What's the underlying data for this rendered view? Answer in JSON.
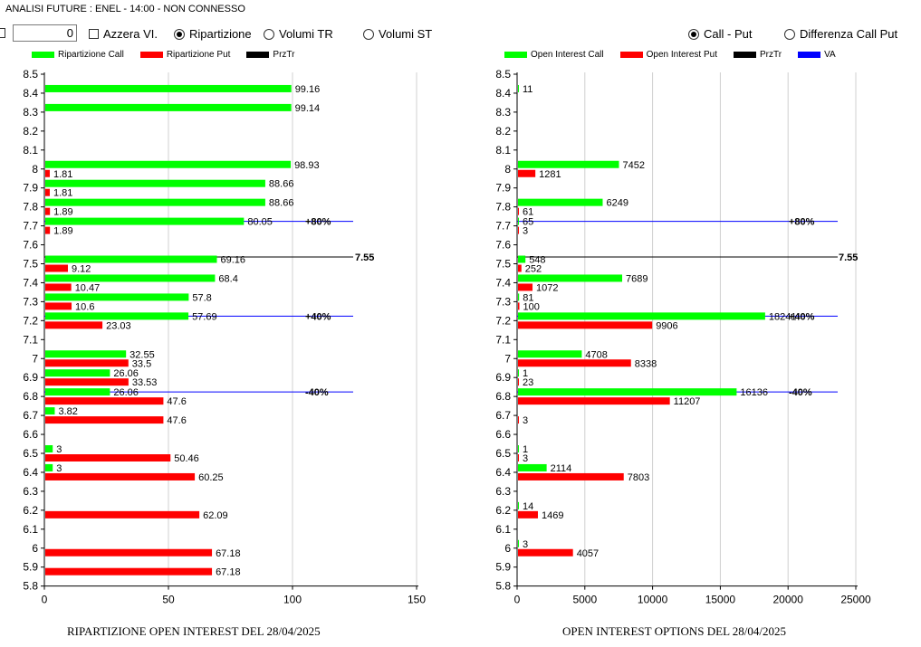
{
  "window": {
    "title": "ANALISI FUTURE : ENEL - 14:00 - NON CONNESSO"
  },
  "controls": {
    "number_value": "0",
    "azzera_label": "Azzera VI.",
    "ripartizione_label": "Ripartizione",
    "volumi_tr_label": "Volumi TR",
    "volumi_st_label": "Volumi ST",
    "call_put_label": "Call - Put",
    "differenza_label": "Differenza Call Put"
  },
  "legend_left": {
    "call": "Ripartizione Call",
    "put": "Ripartizione Put",
    "prztr": "PrzTr"
  },
  "legend_right": {
    "call": "Open Interest Call",
    "put": "Open Interest Put",
    "prztr": "PrzTr",
    "va": "VA"
  },
  "colors": {
    "call": "#00ff00",
    "put": "#ff0000",
    "prztr": "#000000",
    "va": "#0000ff",
    "grid": "#d0d0d0"
  },
  "chart_data": [
    {
      "type": "bar",
      "orientation": "horizontal",
      "title": "RIPARTIZIONE OPEN INTEREST DEL 28/04/2025",
      "categories": [
        "8.5",
        "8.4",
        "8.3",
        "8.2",
        "8.1",
        "8",
        "7.9",
        "7.8",
        "7.7",
        "7.6",
        "7.5",
        "7.4",
        "7.3",
        "7.2",
        "7.1",
        "7",
        "6.9",
        "6.8",
        "6.7",
        "6.6",
        "6.5",
        "6.4",
        "6.3",
        "6.2",
        "6.1",
        "6",
        "5.9",
        "5.8"
      ],
      "series": [
        {
          "name": "Ripartizione Call",
          "values": [
            null,
            99.16,
            99.14,
            null,
            null,
            98.93,
            88.66,
            88.66,
            80.05,
            null,
            69.16,
            68.4,
            57.8,
            57.69,
            null,
            32.55,
            26.06,
            26.06,
            3.82,
            null,
            3,
            3,
            null,
            null,
            null,
            null,
            null,
            null
          ]
        },
        {
          "name": "Ripartizione Put",
          "values": [
            null,
            null,
            null,
            null,
            null,
            1.81,
            1.81,
            1.89,
            1.89,
            null,
            9.12,
            10.47,
            10.6,
            23.03,
            null,
            33.5,
            33.53,
            47.6,
            47.6,
            null,
            50.46,
            60.25,
            null,
            62.09,
            null,
            67.18,
            67.18,
            null
          ]
        }
      ],
      "xlim": [
        0,
        150
      ],
      "xticks": [
        "0",
        "50",
        "100",
        "150"
      ],
      "reference_lines": [
        {
          "y": "7.7",
          "label": "+80%",
          "color": "#0000ff"
        },
        {
          "y": "7.55",
          "label": "7.55",
          "color": "#000000"
        },
        {
          "y": "7.2",
          "label": "+40%",
          "color": "#0000ff"
        },
        {
          "y": "6.8",
          "label": "-40%",
          "color": "#0000ff"
        }
      ],
      "grid": true,
      "legend": "top-left"
    },
    {
      "type": "bar",
      "orientation": "horizontal",
      "title": "OPEN INTEREST OPTIONS DEL 28/04/2025",
      "categories": [
        "8.5",
        "8.4",
        "8.3",
        "8.2",
        "8.1",
        "8",
        "7.9",
        "7.8",
        "7.7",
        "7.6",
        "7.5",
        "7.4",
        "7.3",
        "7.2",
        "7.1",
        "7",
        "6.9",
        "6.8",
        "6.7",
        "6.6",
        "6.5",
        "6.4",
        "6.3",
        "6.2",
        "6.1",
        "6",
        "5.9",
        "5.8"
      ],
      "series": [
        {
          "name": "Open Interest Call",
          "values": [
            null,
            11,
            null,
            null,
            null,
            7452,
            null,
            6249,
            65,
            null,
            548,
            7689,
            81,
            18241,
            null,
            4708,
            1,
            16136,
            null,
            null,
            1,
            2114,
            null,
            14,
            null,
            3,
            null,
            null
          ]
        },
        {
          "name": "Open Interest Put",
          "values": [
            null,
            null,
            null,
            null,
            null,
            1281,
            null,
            61,
            3,
            null,
            252,
            1072,
            100,
            9906,
            null,
            8338,
            23,
            11207,
            3,
            null,
            3,
            7803,
            null,
            1469,
            null,
            4057,
            null,
            null
          ]
        }
      ],
      "xlim": [
        0,
        25000
      ],
      "xticks": [
        "0",
        "5000",
        "10000",
        "15000",
        "20000",
        "25000"
      ],
      "reference_lines": [
        {
          "y": "7.7",
          "label": "+80%",
          "color": "#0000ff"
        },
        {
          "y": "7.55",
          "label": "7.55",
          "color": "#000000"
        },
        {
          "y": "7.2",
          "label": "+40%",
          "color": "#0000ff"
        },
        {
          "y": "6.8",
          "label": "-40%",
          "color": "#0000ff"
        }
      ],
      "grid": true,
      "legend": "top-right"
    }
  ]
}
